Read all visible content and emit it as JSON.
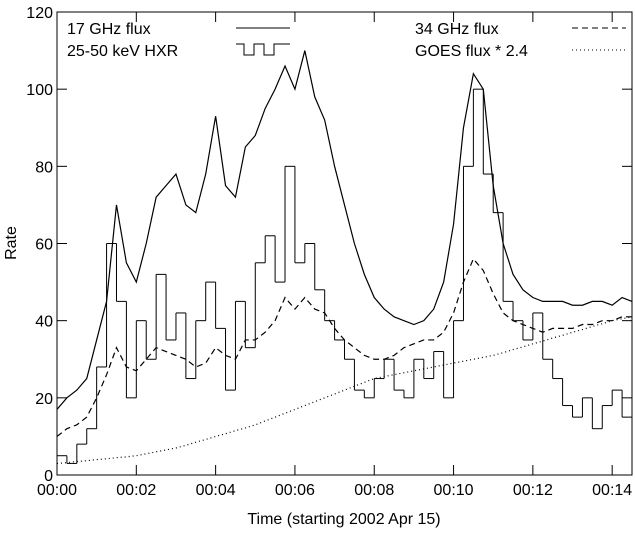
{
  "chart_data": {
    "type": "line",
    "xlabel": "Time (starting 2002 Apr 15)",
    "ylabel": "Rate",
    "xlim": [
      0,
      14.5
    ],
    "ylim": [
      0,
      120
    ],
    "xticks": [
      {
        "value": 0,
        "label": "00:00"
      },
      {
        "value": 2,
        "label": "00:02"
      },
      {
        "value": 4,
        "label": "00:04"
      },
      {
        "value": 6,
        "label": "00:06"
      },
      {
        "value": 8,
        "label": "00:08"
      },
      {
        "value": 10,
        "label": "00:10"
      },
      {
        "value": 12,
        "label": "00:12"
      },
      {
        "value": 14,
        "label": "00:14"
      }
    ],
    "yticks": [
      0,
      20,
      40,
      60,
      80,
      100,
      120
    ],
    "x": [
      0,
      0.25,
      0.5,
      0.75,
      1,
      1.25,
      1.5,
      1.75,
      2,
      2.25,
      2.5,
      2.75,
      3,
      3.25,
      3.5,
      3.75,
      4,
      4.25,
      4.5,
      4.75,
      5,
      5.25,
      5.5,
      5.75,
      6,
      6.25,
      6.5,
      6.75,
      7,
      7.25,
      7.5,
      7.75,
      8,
      8.25,
      8.5,
      8.75,
      9,
      9.25,
      9.5,
      9.75,
      10,
      10.25,
      10.5,
      10.75,
      11,
      11.25,
      11.5,
      11.75,
      12,
      12.25,
      12.5,
      12.75,
      13,
      13.25,
      13.5,
      13.75,
      14,
      14.25,
      14.5
    ],
    "series": [
      {
        "name": "17 GHz flux",
        "color": "#000000",
        "dash": "none",
        "step": false,
        "legend": "left",
        "values": [
          17,
          20,
          22,
          25,
          35,
          45,
          70,
          55,
          50,
          60,
          72,
          75,
          78,
          70,
          68,
          78,
          93,
          75,
          72,
          85,
          88,
          95,
          100,
          106,
          100,
          110,
          98,
          92,
          80,
          70,
          60,
          52,
          46,
          43,
          41,
          40,
          39,
          40,
          43,
          50,
          65,
          90,
          104,
          100,
          75,
          60,
          52,
          48,
          46,
          45,
          45,
          45,
          44,
          44,
          45,
          45,
          44,
          46,
          45
        ]
      },
      {
        "name": "25-50 keV HXR",
        "color": "#000000",
        "dash": "none",
        "step": true,
        "legend": "left",
        "values": [
          5,
          3,
          8,
          12,
          28,
          60,
          45,
          20,
          40,
          30,
          52,
          35,
          42,
          25,
          40,
          50,
          38,
          22,
          45,
          33,
          55,
          62,
          50,
          80,
          55,
          60,
          48,
          40,
          35,
          30,
          22,
          20,
          25,
          30,
          22,
          20,
          30,
          25,
          32,
          20,
          40,
          80,
          100,
          78,
          68,
          45,
          40,
          35,
          42,
          30,
          25,
          18,
          15,
          20,
          12,
          18,
          22,
          15,
          10
        ]
      },
      {
        "name": "34 GHz flux",
        "color": "#000000",
        "dash": "6,4",
        "step": false,
        "legend": "right",
        "values": [
          10,
          12,
          13,
          15,
          20,
          26,
          33,
          28,
          27,
          30,
          33,
          32,
          31,
          30,
          28,
          29,
          33,
          31,
          30,
          35,
          35,
          37,
          40,
          46,
          43,
          46,
          43,
          42,
          38,
          35,
          33,
          31,
          30,
          30,
          31,
          33,
          34,
          35,
          35,
          37,
          42,
          50,
          56,
          53,
          47,
          42,
          40,
          39,
          38,
          37,
          38,
          38,
          38,
          39,
          39,
          40,
          40,
          41,
          41
        ]
      },
      {
        "name": "GOES flux * 2.4",
        "color": "#000000",
        "dash": "1,3",
        "step": false,
        "legend": "right",
        "values": [
          3,
          3.2,
          3.5,
          3.7,
          4,
          4.2,
          4.5,
          4.7,
          5,
          5.5,
          6,
          6.5,
          7,
          7.7,
          8.5,
          9.2,
          10,
          10.7,
          11.5,
          12.2,
          13,
          14,
          15,
          16,
          17,
          18,
          19,
          20,
          21,
          22,
          23,
          24,
          25,
          25.5,
          26,
          26.5,
          27,
          27.5,
          28,
          28.5,
          29,
          29.5,
          30,
          30.5,
          31,
          31.7,
          32.5,
          33.2,
          34,
          34.7,
          35.5,
          36.2,
          37,
          37.7,
          38.5,
          39.2,
          40,
          40.5,
          41
        ]
      }
    ]
  }
}
